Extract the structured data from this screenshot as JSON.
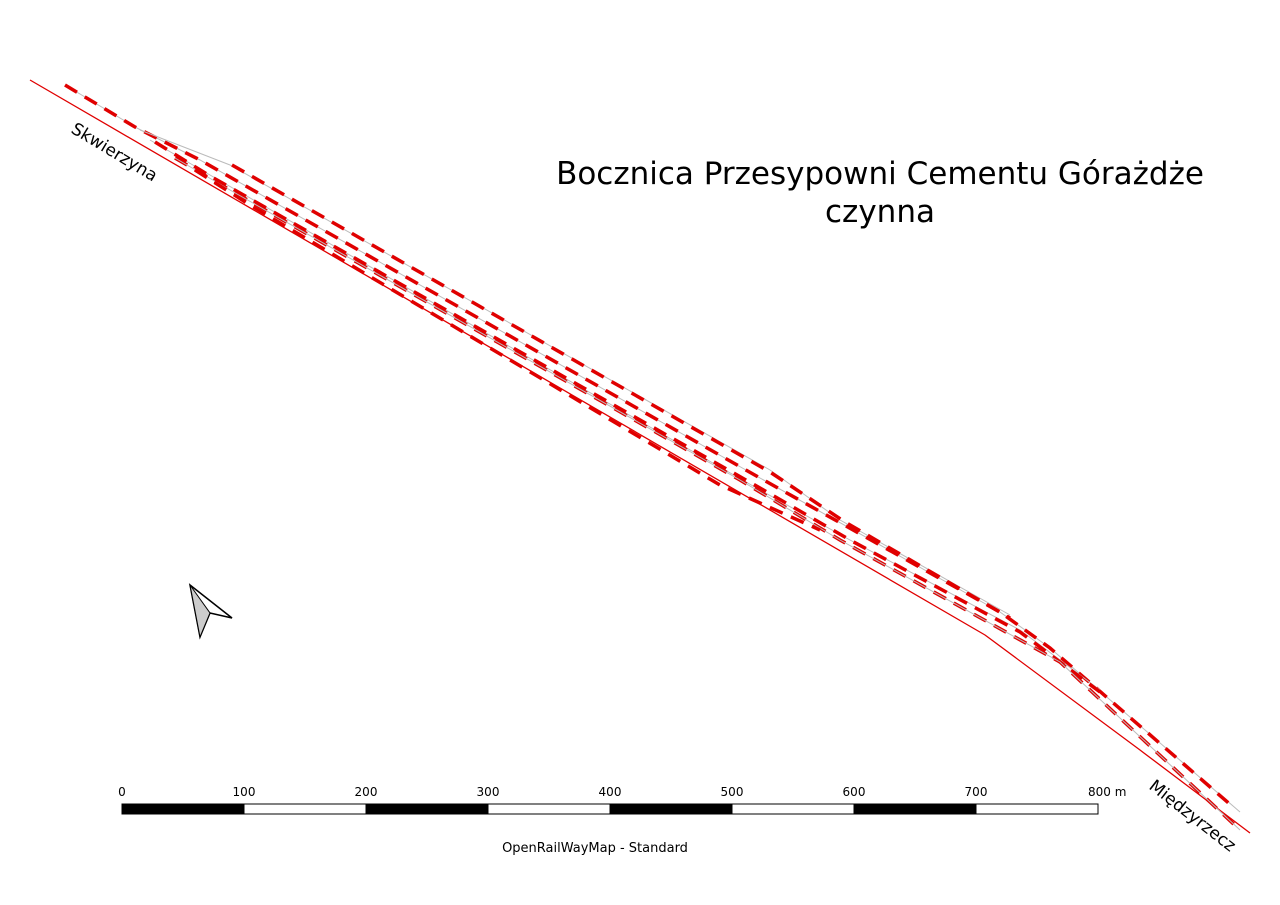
{
  "title": [
    "Bocznica Przesypowni Cementu Górażdże",
    "czynna"
  ],
  "places": [
    "Skwierzyna",
    "Międzyrzecz"
  ],
  "scale_bar": {
    "ticks": [
      0,
      100,
      200,
      300,
      400,
      500,
      600,
      700,
      {
        "value": 800,
        "label": "800 m"
      }
    ]
  },
  "source": "OpenRailWayMap - Standard"
}
